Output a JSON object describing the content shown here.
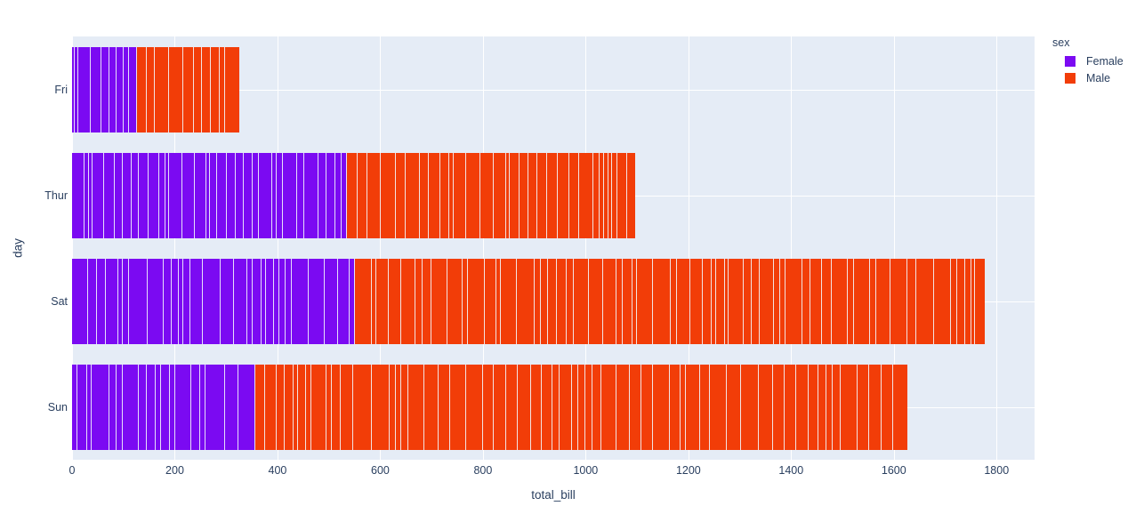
{
  "chart_data": {
    "type": "bar",
    "orientation": "horizontal",
    "barmode": "stack",
    "stacking_note": "each day/sex bar is composed of individual record segments (one thin slice per bill), separated by light lines",
    "title": "",
    "xlabel": "total_bill",
    "ylabel": "day",
    "categories": [
      "Fri",
      "Thur",
      "Sat",
      "Sun"
    ],
    "series": [
      {
        "name": "Female",
        "color": "#7B0AF2",
        "values": [
          127.31,
          534.89,
          551.05,
          357.7
        ],
        "segments": [
          9,
          32,
          28,
          18
        ]
      },
      {
        "name": "Male",
        "color": "#F23D08",
        "values": [
          198.57,
          561.44,
          1227.35,
          1269.46
        ],
        "segments": [
          10,
          30,
          59,
          58
        ]
      }
    ],
    "bar_totals": [
      325.88,
      1096.33,
      1778.4,
      1627.16
    ],
    "x_ticks": [
      0,
      200,
      400,
      600,
      800,
      1000,
      1200,
      1400,
      1600,
      1800
    ],
    "xlim": [
      0,
      1874
    ],
    "grid": {
      "show": true,
      "color": "#ffffff"
    },
    "plot_background": "#E5ECF6",
    "paper_background": "#ffffff",
    "text_color": "#2a3f5f",
    "segment_separator_color": "rgba(243,245,251,0.9)",
    "legend": {
      "title": "sex",
      "position": "top-right-outside",
      "entries": [
        {
          "label": "Female",
          "color": "#7B0AF2"
        },
        {
          "label": "Male",
          "color": "#F23D08"
        }
      ]
    }
  }
}
